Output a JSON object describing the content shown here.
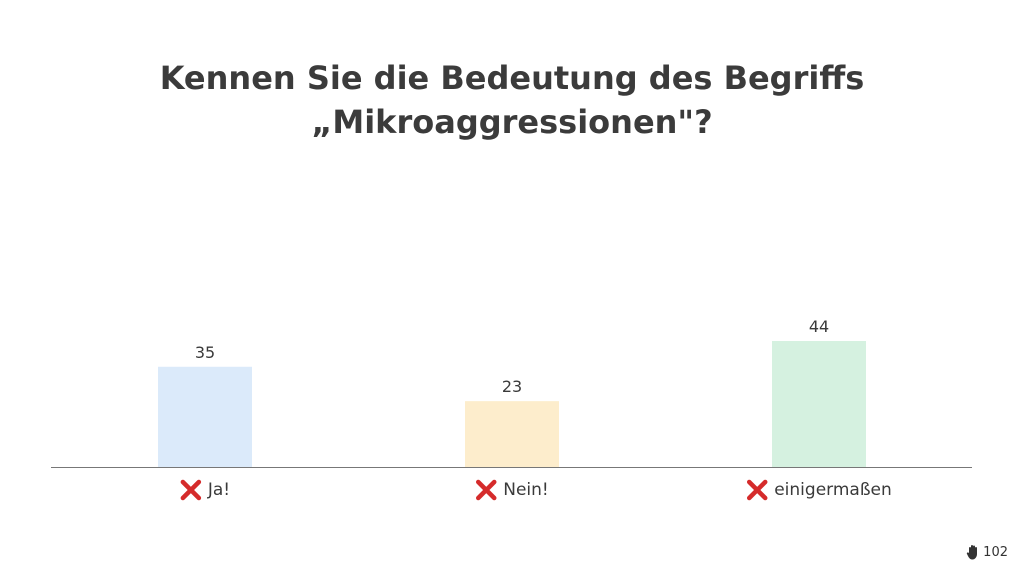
{
  "title": {
    "line1": "Kennen Sie die Bedeutung des Begriffs",
    "line2": "„Mikroaggressionen\"?"
  },
  "chart_data": {
    "type": "bar",
    "categories": [
      "Ja!",
      "Nein!",
      "einigermaßen"
    ],
    "values": [
      35,
      23,
      44
    ],
    "category_marks": [
      "cross-mark-icon",
      "cross-mark-icon",
      "cross-mark-icon"
    ],
    "colors": [
      "#dbeafa",
      "#fdedcc",
      "#d5f1e0"
    ],
    "axis_color": "#777777",
    "mark_color": "#d52b2b",
    "title": "",
    "xlabel": "",
    "ylabel": "",
    "ylim": [
      0,
      44
    ],
    "grid": false,
    "legend": "none"
  },
  "footer": {
    "icon": "raised-hand-icon",
    "count": "102"
  }
}
